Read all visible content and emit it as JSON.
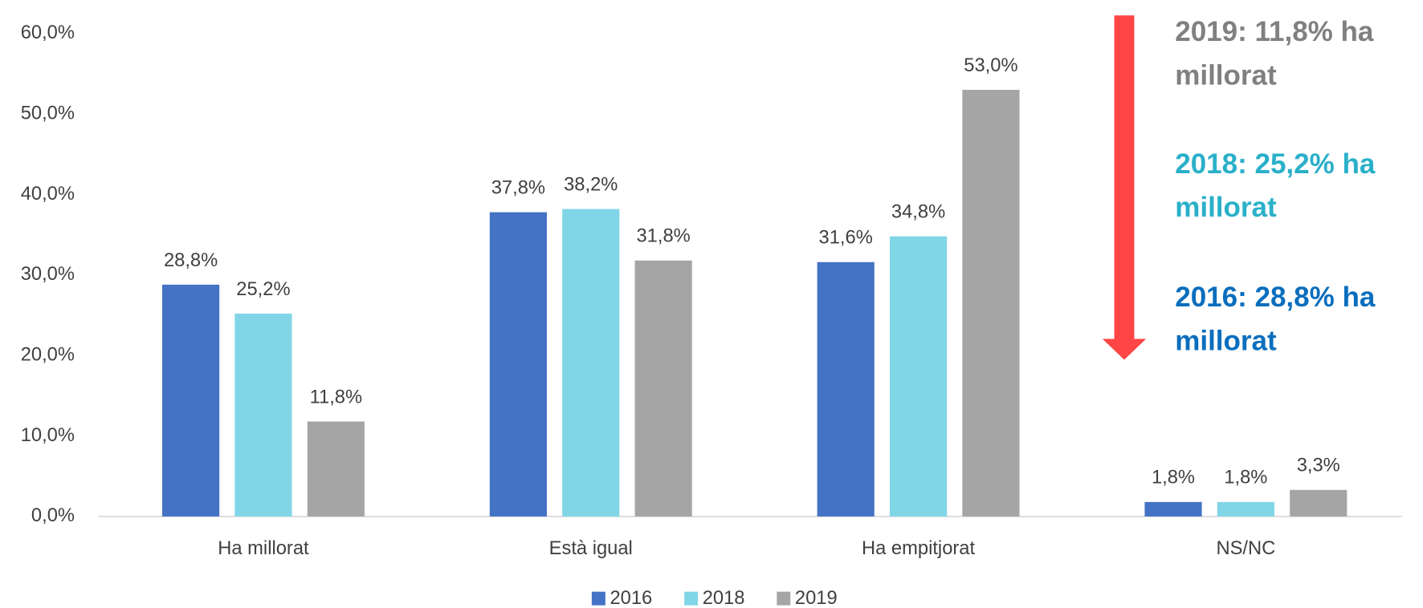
{
  "chart_data": {
    "type": "bar",
    "categories": [
      "Ha millorat",
      "Està igual",
      "Ha empitjorat",
      "NS/NC"
    ],
    "series": [
      {
        "name": "2016",
        "color": "#4472c4",
        "values": [
          28.8,
          37.8,
          31.6,
          1.8
        ],
        "value_labels": [
          "28,8%",
          "37,8%",
          "31,6%",
          "1,8%"
        ]
      },
      {
        "name": "2018",
        "color": "#80d6e6",
        "values": [
          25.2,
          38.2,
          34.8,
          1.8
        ],
        "value_labels": [
          "25,2%",
          "38,2%",
          "34,8%",
          "1,8%"
        ]
      },
      {
        "name": "2019",
        "color": "#a5a5a5",
        "values": [
          11.8,
          31.8,
          53.0,
          3.3
        ],
        "value_labels": [
          "11,8%",
          "31,8%",
          "53,0%",
          "3,3%"
        ]
      }
    ],
    "ylim": [
      0,
      60
    ],
    "yticks": [
      {
        "value": 0,
        "label": "0,0%"
      },
      {
        "value": 10,
        "label": "10,0%"
      },
      {
        "value": 20,
        "label": "20,0%"
      },
      {
        "value": 30,
        "label": "30,0%"
      },
      {
        "value": 40,
        "label": "40,0%"
      },
      {
        "value": 50,
        "label": "50,0%"
      },
      {
        "value": 60,
        "label": "60,0%"
      }
    ],
    "grid": false,
    "legend": "bottom",
    "annotations": [
      {
        "lines": [
          "2019: 11,8% ha",
          "millorat"
        ],
        "color": "#808080"
      },
      {
        "lines": [
          "2018: 25,2% ha",
          "millorat"
        ],
        "color": "#2ab0c9"
      },
      {
        "lines": [
          "2016: 28,8% ha",
          "millorat"
        ],
        "color": "#0a6ebd"
      }
    ]
  }
}
